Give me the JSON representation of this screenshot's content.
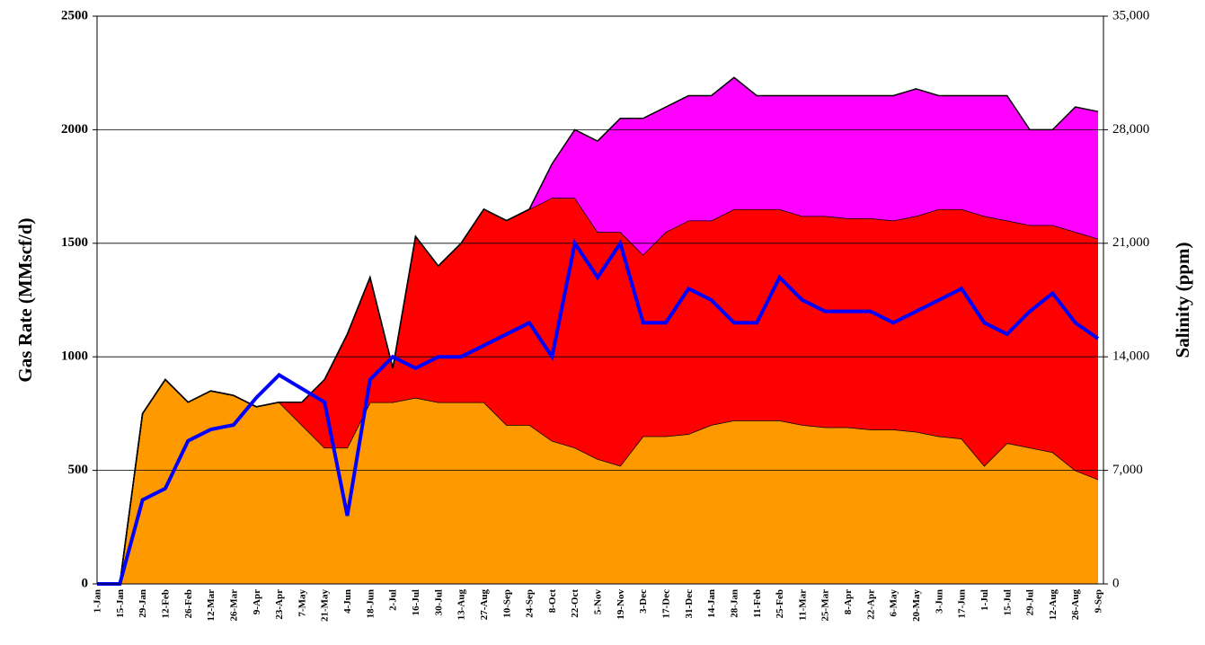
{
  "chart_data": {
    "type": "area",
    "stacked": true,
    "y_label": "Gas Rate (MMscf/d)",
    "y2_label": "Salinity (ppm)",
    "categories": [
      "1-Jan",
      "15-Jan",
      "29-Jan",
      "12-Feb",
      "26-Feb",
      "12-Mar",
      "26-Mar",
      "9-Apr",
      "23-Apr",
      "7-May",
      "21-May",
      "4-Jun",
      "18-Jun",
      "2-Jul",
      "16-Jul",
      "30-Jul",
      "13-Aug",
      "27-Aug",
      "10-Sep",
      "24-Sep",
      "8-Oct",
      "22-Oct",
      "5-Nov",
      "19-Nov",
      "3-Dec",
      "17-Dec",
      "31-Dec",
      "14-Jan",
      "28-Jan",
      "11-Feb",
      "25-Feb",
      "11-Mar",
      "25-Mar",
      "8-Apr",
      "22-Apr",
      "6-May",
      "20-May",
      "3-Jun",
      "17-Jun",
      "1-Jul",
      "15-Jul",
      "29-Jul",
      "12-Aug",
      "26-Aug",
      "9-Sep"
    ],
    "series": [
      {
        "color": "#FF9900",
        "values": [
          0,
          0,
          750,
          900,
          800,
          850,
          830,
          780,
          800,
          700,
          600,
          600,
          800,
          800,
          820,
          800,
          800,
          800,
          700,
          700,
          630,
          600,
          550,
          520,
          650,
          650,
          660,
          700,
          720,
          720,
          720,
          700,
          690,
          690,
          680,
          680,
          670,
          650,
          640,
          520,
          620,
          600,
          580,
          500,
          460
        ]
      },
      {
        "color": "#FF0000",
        "values": [
          0,
          0,
          0,
          0,
          0,
          0,
          0,
          0,
          0,
          100,
          300,
          500,
          550,
          150,
          710,
          600,
          700,
          850,
          900,
          950,
          1070,
          1100,
          1000,
          1030,
          800,
          900,
          940,
          900,
          930,
          930,
          930,
          920,
          930,
          920,
          930,
          920,
          950,
          1000,
          1010,
          1100,
          980,
          980,
          1000,
          1050,
          1060
        ]
      },
      {
        "color": "#FF00FF",
        "values": [
          0,
          0,
          0,
          0,
          0,
          0,
          0,
          0,
          0,
          0,
          0,
          0,
          0,
          0,
          0,
          0,
          0,
          0,
          0,
          0,
          150,
          300,
          400,
          500,
          600,
          550,
          550,
          550,
          580,
          500,
          500,
          530,
          530,
          540,
          540,
          550,
          560,
          500,
          500,
          530,
          550,
          420,
          420,
          550,
          560
        ]
      },
      {
        "color": "#0000FF",
        "axis": "y2",
        "values": [
          0,
          0,
          5180,
          5880,
          8820,
          9520,
          9800,
          11480,
          12880,
          12040,
          11200,
          4200,
          12600,
          14000,
          13300,
          14000,
          14000,
          14700,
          15400,
          16100,
          14000,
          21000,
          18900,
          21000,
          16100,
          16100,
          18200,
          17500,
          16100,
          16100,
          18900,
          17500,
          16800,
          16800,
          16800,
          16100,
          16800,
          17500,
          18200,
          16100,
          15400,
          16800,
          17920,
          16100,
          15120
        ]
      }
    ],
    "ylim": [
      0,
      2500
    ],
    "yticks": [
      0,
      500,
      1000,
      1500,
      2000,
      2500
    ],
    "y2lim": [
      0,
      35000
    ],
    "y2ticks": [
      0,
      {
        "value": 7000,
        "label": "7,000"
      },
      {
        "value": 14000,
        "label": "14,000"
      },
      {
        "value": 21000,
        "label": "21,000"
      },
      {
        "value": 28000,
        "label": "28,000"
      },
      {
        "value": 35000,
        "label": "35,000"
      }
    ],
    "grid": true
  }
}
